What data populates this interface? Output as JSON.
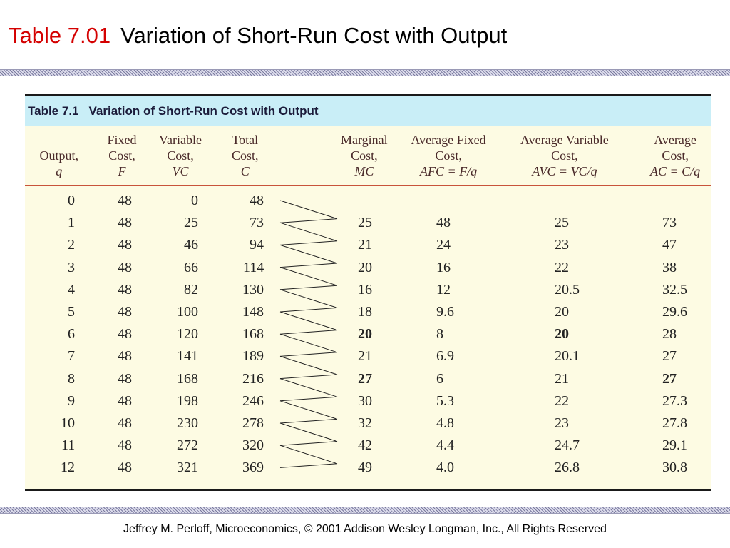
{
  "slide": {
    "title_number": "Table 7.01",
    "title_text": "Variation of Short-Run Cost with Output"
  },
  "table": {
    "caption_number": "Table 7.1",
    "caption_title": "Variation of Short-Run Cost with Output",
    "columns": [
      {
        "lines": [
          "Output,"
        ],
        "symbol": "q"
      },
      {
        "lines": [
          "Fixed",
          "Cost,"
        ],
        "symbol": "F"
      },
      {
        "lines": [
          "Variable",
          "Cost,"
        ],
        "symbol": "VC"
      },
      {
        "lines": [
          "Total",
          "Cost,"
        ],
        "symbol": "C"
      },
      {
        "lines": [
          "Marginal",
          "Cost,"
        ],
        "symbol": "MC"
      },
      {
        "lines": [
          "Average Fixed",
          "Cost,"
        ],
        "symbol": "AFC = F/q"
      },
      {
        "lines": [
          "Average Variable",
          "Cost,"
        ],
        "symbol": "AVC = VC/q"
      },
      {
        "lines": [
          "Average",
          "Cost,"
        ],
        "symbol": "AC = C/q"
      }
    ],
    "rows": [
      {
        "q": "0",
        "F": "48",
        "VC": "0",
        "C": "48",
        "MC": "",
        "AFC": "",
        "AVC": "",
        "AC": ""
      },
      {
        "q": "1",
        "F": "48",
        "VC": "25",
        "C": "73",
        "MC": "25",
        "AFC": "48",
        "AVC": "25",
        "AC": "73"
      },
      {
        "q": "2",
        "F": "48",
        "VC": "46",
        "C": "94",
        "MC": "21",
        "AFC": "24",
        "AVC": "23",
        "AC": "47"
      },
      {
        "q": "3",
        "F": "48",
        "VC": "66",
        "C": "114",
        "MC": "20",
        "AFC": "16",
        "AVC": "22",
        "AC": "38"
      },
      {
        "q": "4",
        "F": "48",
        "VC": "82",
        "C": "130",
        "MC": "16",
        "AFC": "12",
        "AVC": "20.5",
        "AC": "32.5"
      },
      {
        "q": "5",
        "F": "48",
        "VC": "100",
        "C": "148",
        "MC": "18",
        "AFC": "9.6",
        "AVC": "20",
        "AC": "29.6"
      },
      {
        "q": "6",
        "F": "48",
        "VC": "120",
        "C": "168",
        "MC": "20",
        "AFC": "8",
        "AVC": "20",
        "AC": "28"
      },
      {
        "q": "7",
        "F": "48",
        "VC": "141",
        "C": "189",
        "MC": "21",
        "AFC": "6.9",
        "AVC": "20.1",
        "AC": "27"
      },
      {
        "q": "8",
        "F": "48",
        "VC": "168",
        "C": "216",
        "MC": "27",
        "AFC": "6",
        "AVC": "21",
        "AC": "27"
      },
      {
        "q": "9",
        "F": "48",
        "VC": "198",
        "C": "246",
        "MC": "30",
        "AFC": "5.3",
        "AVC": "22",
        "AC": "27.3"
      },
      {
        "q": "10",
        "F": "48",
        "VC": "230",
        "C": "278",
        "MC": "32",
        "AFC": "4.8",
        "AVC": "23",
        "AC": "27.8"
      },
      {
        "q": "11",
        "F": "48",
        "VC": "272",
        "C": "320",
        "MC": "42",
        "AFC": "4.4",
        "AVC": "24.7",
        "AC": "29.1"
      },
      {
        "q": "12",
        "F": "48",
        "VC": "321",
        "C": "369",
        "MC": "49",
        "AFC": "4.0",
        "AVC": "26.8",
        "AC": "30.8"
      }
    ],
    "bold_cells": [
      {
        "row": 6,
        "key": "MC"
      },
      {
        "row": 6,
        "key": "AVC"
      },
      {
        "row": 8,
        "key": "MC"
      },
      {
        "row": 8,
        "key": "AC"
      }
    ]
  },
  "footer": "Jeffrey M. Perloff, Microeconomics,  © 2001 Addison Wesley Longman, Inc.,  All Rights Reserved",
  "colors": {
    "title_number": "#d40000",
    "caption_bar": "#c9eef7",
    "table_background": "#fdfbe3",
    "header_rule": "#c8533b"
  }
}
